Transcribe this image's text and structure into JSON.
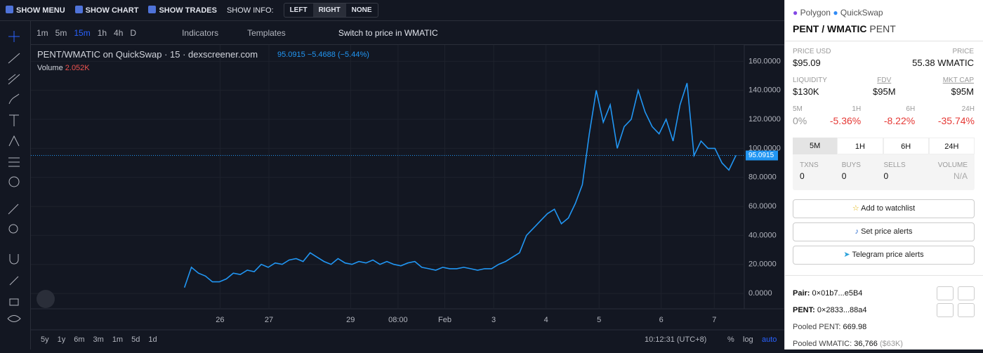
{
  "header": {
    "show_menu": "SHOW MENU",
    "show_chart": "SHOW CHART",
    "show_trades": "SHOW TRADES",
    "show_info": "SHOW INFO:",
    "info_options": [
      "LEFT",
      "RIGHT",
      "NONE"
    ]
  },
  "toolbar": {
    "intervals": [
      "1m",
      "5m",
      "15m",
      "1h",
      "4h",
      "D"
    ],
    "indicators": "Indicators",
    "templates": "Templates",
    "switch": "Switch to price in WMATIC"
  },
  "legend": {
    "title": "PENT/WMATIC on QuickSwap · 15 · dexscreener.com",
    "quote": "95.0915 −5.4688 (−5.44%)",
    "volume_label": "Volume",
    "volume_value": "2.052K"
  },
  "bottom": {
    "ranges": [
      "5y",
      "1y",
      "6m",
      "3m",
      "1m",
      "5d",
      "1d"
    ],
    "time": "10:12:31 (UTC+8)",
    "pct": "%",
    "log": "log",
    "auto": "auto"
  },
  "chart_data": {
    "type": "line",
    "color": "#2196f3",
    "grid": true,
    "values": [
      4,
      18,
      14,
      12,
      8,
      8,
      10,
      14,
      13,
      16,
      15,
      20,
      18,
      21,
      20,
      23,
      24,
      22,
      28,
      25,
      22,
      20,
      24,
      21,
      20,
      22,
      21,
      23,
      20,
      22,
      20,
      19,
      21,
      22,
      18,
      17,
      16,
      18,
      17,
      17,
      18,
      17,
      16,
      17,
      17,
      20,
      22,
      25,
      28,
      40,
      45,
      50,
      55,
      58,
      48,
      52,
      62,
      75,
      110,
      140,
      118,
      130,
      100,
      115,
      120,
      140,
      125,
      115,
      110,
      120,
      105,
      130,
      145,
      95,
      105,
      100,
      100,
      90,
      85,
      95.09
    ],
    "last_value": 95.0915,
    "xlim": [
      -22,
      80.2
    ],
    "xticks": [
      {
        "value": 5.1,
        "label": "26"
      },
      {
        "value": 12.1,
        "label": "27"
      },
      {
        "value": 23.8,
        "label": "29"
      },
      {
        "value": 30.6,
        "label": "08:00"
      },
      {
        "value": 37.3,
        "label": "Feb"
      },
      {
        "value": 44.3,
        "label": "3"
      },
      {
        "value": 51.8,
        "label": "4"
      },
      {
        "value": 59.4,
        "label": "5"
      },
      {
        "value": 68.3,
        "label": "6"
      },
      {
        "value": 75.9,
        "label": "7"
      }
    ],
    "ylim": [
      -10.6,
      171.3
    ],
    "yticks": [
      {
        "value": 0,
        "label": "0.0000"
      },
      {
        "value": 20,
        "label": "20.0000"
      },
      {
        "value": 40,
        "label": "40.0000"
      },
      {
        "value": 60,
        "label": "60.0000"
      },
      {
        "value": 80,
        "label": "80.0000"
      },
      {
        "value": 100,
        "label": "100.0000"
      },
      {
        "value": 120,
        "label": "120.0000"
      },
      {
        "value": 140,
        "label": "140.0000"
      },
      {
        "value": 160,
        "label": "160.0000"
      }
    ]
  },
  "panel": {
    "chain": "Polygon",
    "dex": "QuickSwap",
    "pair": "PENT / WMATIC",
    "symbol": "PENT",
    "stats": [
      {
        "label": "PRICE USD",
        "value": "$95.09"
      },
      {
        "label": "PRICE",
        "value": "55.38 WMATIC"
      },
      {
        "label": "LIQUIDITY",
        "value": "$130K"
      },
      {
        "label": "FDV",
        "value": "$95M"
      },
      {
        "label": "MKT CAP",
        "value": "$95M"
      }
    ],
    "changes": [
      {
        "label": "5M",
        "value": "0%"
      },
      {
        "label": "1H",
        "value": "-5.36%"
      },
      {
        "label": "6H",
        "value": "-8.22%"
      },
      {
        "label": "24H",
        "value": "-35.74%"
      }
    ],
    "tabs": [
      "5M",
      "1H",
      "6H",
      "24H"
    ],
    "txns": [
      {
        "label": "TXNS",
        "value": "0"
      },
      {
        "label": "BUYS",
        "value": "0"
      },
      {
        "label": "SELLS",
        "value": "0"
      },
      {
        "label": "VOLUME",
        "value": "N/A"
      }
    ],
    "buttons": [
      "Add to watchlist",
      "Set price alerts",
      "Telegram price alerts"
    ],
    "pair_label": "Pair:",
    "pair_addr": "0×01b7...e5B4",
    "token_label": "PENT:",
    "token_addr": "0×2833...88a4",
    "pooled_pent_label": "Pooled PENT:",
    "pooled_pent": "669.98",
    "pooled_wmatic_label": "Pooled WMATIC:",
    "pooled_wmatic": "36,766",
    "pooled_wmatic_usd": "($63K)"
  }
}
